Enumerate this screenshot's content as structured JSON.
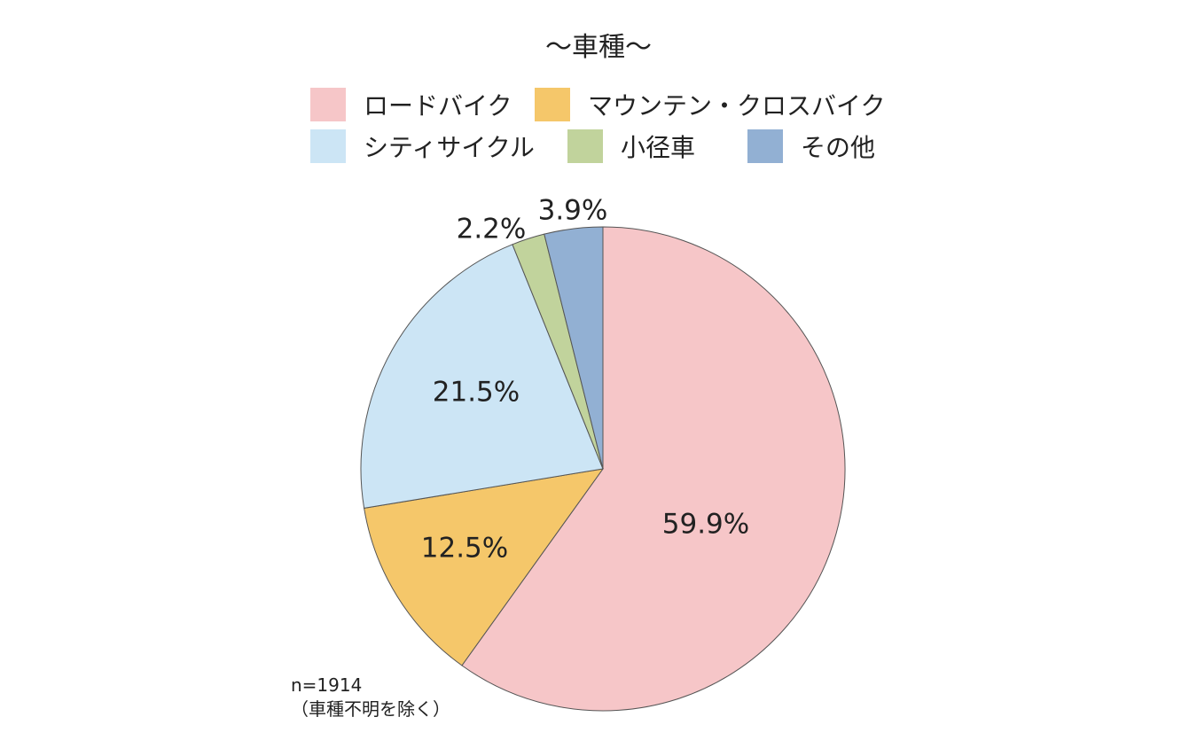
{
  "chart_data": {
    "type": "pie",
    "title": "～車種～",
    "legend_position": "top",
    "slices": [
      {
        "name": "ロードバイク",
        "value": 59.9,
        "label": "59.9%",
        "color": "#f6c6c8"
      },
      {
        "name": "マウンテン・クロスバイク",
        "value": 12.5,
        "label": "12.5%",
        "color": "#f5c76a"
      },
      {
        "name": "シティサイクル",
        "value": 21.5,
        "label": "21.5%",
        "color": "#cce5f5"
      },
      {
        "name": "小径車",
        "value": 2.2,
        "label": "2.2%",
        "color": "#c1d39c"
      },
      {
        "name": "その他",
        "value": 3.9,
        "label": "3.9%",
        "color": "#92b0d3"
      }
    ],
    "note_lines": [
      "n=1914",
      "（車種不明を除く）"
    ]
  }
}
